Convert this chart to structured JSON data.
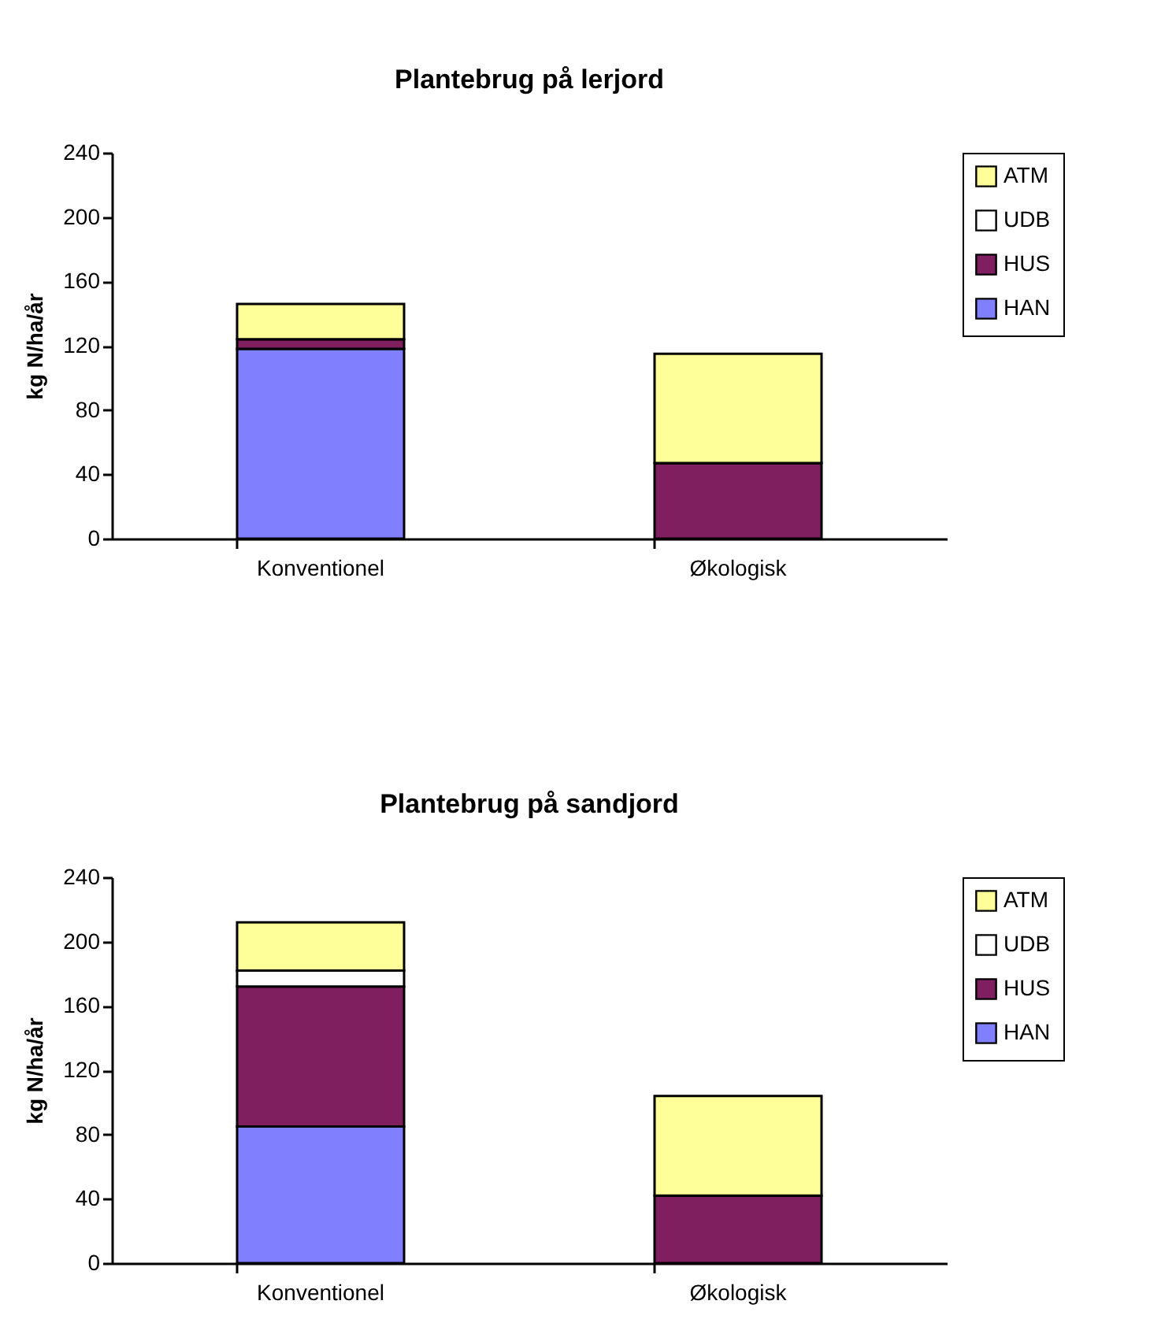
{
  "chart_data": [
    {
      "type": "bar",
      "title": "Plantebrug på lerjord",
      "ylabel": "kg N/ha/år",
      "categories": [
        "Konventionel",
        "Økologisk"
      ],
      "stacked": true,
      "ylim": [
        0,
        240
      ],
      "yticks": [
        0,
        40,
        80,
        120,
        160,
        200,
        240
      ],
      "grid": false,
      "legend": "right",
      "series": [
        {
          "name": "HAN",
          "color": "#8080ff",
          "values": [
            118,
            0
          ]
        },
        {
          "name": "HUS",
          "color": "#7f1f5f",
          "values": [
            6,
            47
          ]
        },
        {
          "name": "UDB",
          "color": "#ffffff",
          "values": [
            0,
            0
          ]
        },
        {
          "name": "ATM",
          "color": "#ffff99",
          "values": [
            22,
            68
          ]
        }
      ]
    },
    {
      "type": "bar",
      "title": "Plantebrug på sandjord",
      "ylabel": "kg N/ha/år",
      "categories": [
        "Konventionel",
        "Økologisk"
      ],
      "stacked": true,
      "ylim": [
        0,
        240
      ],
      "yticks": [
        0,
        40,
        80,
        120,
        160,
        200,
        240
      ],
      "grid": false,
      "legend": "right",
      "series": [
        {
          "name": "HAN",
          "color": "#8080ff",
          "values": [
            85,
            0
          ]
        },
        {
          "name": "HUS",
          "color": "#7f1f5f",
          "values": [
            87,
            42
          ]
        },
        {
          "name": "UDB",
          "color": "#ffffff",
          "values": [
            10,
            0
          ]
        },
        {
          "name": "ATM",
          "color": "#ffff99",
          "values": [
            30,
            62
          ]
        }
      ]
    }
  ]
}
